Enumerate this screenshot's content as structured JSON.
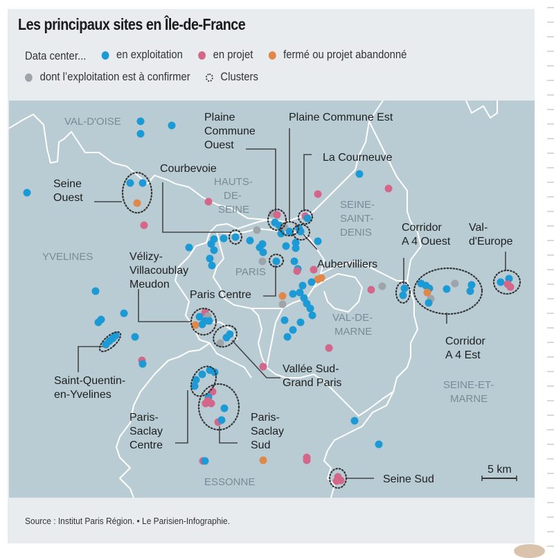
{
  "title": "Les principaux sites en Île-de-France",
  "legend": {
    "intro": "Data center...",
    "items": [
      {
        "key": "exploitation",
        "label": "en exploitation",
        "color": "#1b9ad6"
      },
      {
        "key": "projet",
        "label": "en projet",
        "color": "#d4668a"
      },
      {
        "key": "ferme",
        "label": "fermé ou projet abandonné",
        "color": "#e0874a"
      },
      {
        "key": "confirmer",
        "label": "dont l’exploitation est à confirmer",
        "color": "#9ea5aa"
      },
      {
        "key": "cluster",
        "label": "Clusters",
        "icon": "dotted-circle-icon"
      }
    ]
  },
  "colors": {
    "map_background": "#b9ccd3",
    "border": "#ffffff",
    "leader_line": "#444444",
    "cluster_ring": "#333333"
  },
  "departments": [
    "VAL-D'OISE",
    "HAUTS-DE-SEINE",
    "SEINE-SAINT-DENIS",
    "YVELINES",
    "PARIS",
    "VAL-DE-MARNE",
    "SEINE-ET-MARNE",
    "ESSONNE"
  ],
  "department_labels": {
    "val_doise": "VAL-D'OISE",
    "hauts_de_seine": [
      "HAUTS-",
      "DE-",
      "SEINE"
    ],
    "seine_saint_denis": [
      "SEINE-",
      "SAINT-",
      "DENIS"
    ],
    "yvelines": "YVELINES",
    "paris": "PARIS",
    "val_de_marne": [
      "VAL-DE-",
      "MARNE"
    ],
    "seine_et_marne": [
      "SEINE-ET-",
      "MARNE"
    ],
    "essonne": "ESSONNE"
  },
  "clusters": [
    {
      "name": "Seine Ouest",
      "lines": [
        "Seine",
        "Ouest"
      ]
    },
    {
      "name": "Courbevoie",
      "lines": [
        "Courbevoie"
      ]
    },
    {
      "name": "Plaine Commune Ouest",
      "lines": [
        "Plaine",
        "Commune",
        "Ouest"
      ]
    },
    {
      "name": "Plaine Commune Est",
      "lines": [
        "Plaine Commune Est"
      ]
    },
    {
      "name": "La Courneuve",
      "lines": [
        "La Courneuve"
      ]
    },
    {
      "name": "Aubervilliers",
      "lines": [
        "Aubervilliers"
      ]
    },
    {
      "name": "Paris Centre",
      "lines": [
        "Paris Centre"
      ]
    },
    {
      "name": "Vélizy-Villacoublay Meudon",
      "lines": [
        "Vélizy-",
        "Villacoublay",
        "Meudon"
      ]
    },
    {
      "name": "Vallée Sud-Grand Paris",
      "lines": [
        "Vallée Sud-",
        "Grand Paris"
      ]
    },
    {
      "name": "Saint-Quentin-en-Yvelines",
      "lines": [
        "Saint-Quentin-",
        "en-Yvelines"
      ]
    },
    {
      "name": "Paris-Saclay Centre",
      "lines": [
        "Paris-",
        "Saclay",
        "Centre"
      ]
    },
    {
      "name": "Paris-Saclay Sud",
      "lines": [
        "Paris-",
        "Saclay",
        "Sud"
      ]
    },
    {
      "name": "Corridor A 4 Ouest",
      "lines": [
        "Corridor",
        "A 4 Ouest"
      ]
    },
    {
      "name": "Val-d'Europe",
      "lines": [
        "Val-",
        "d'Europe"
      ]
    },
    {
      "name": "Corridor A 4 Est",
      "lines": [
        "Corridor",
        "A 4 Est"
      ]
    },
    {
      "name": "Seine Sud",
      "lines": [
        "Seine Sud"
      ]
    }
  ],
  "scale": {
    "label": "5 km",
    "distance_km": 5
  },
  "source": "Source : Institut Paris Région. • Le Parisien-Infographie."
}
